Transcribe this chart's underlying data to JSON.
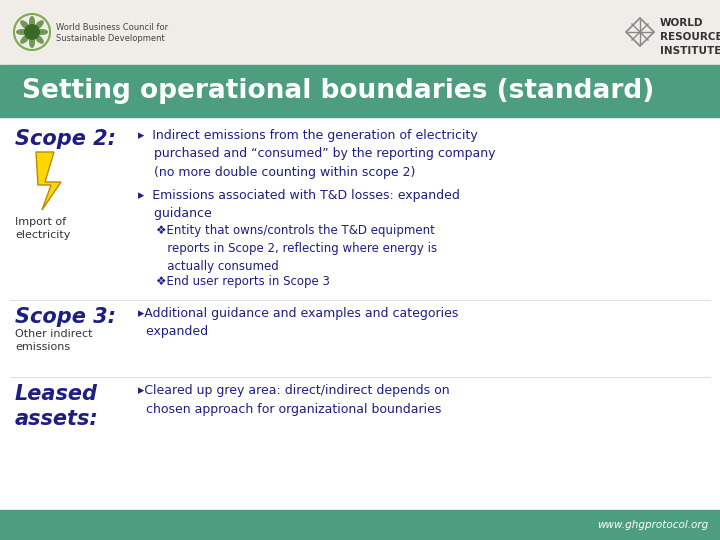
{
  "title": "Setting operational boundaries (standard)",
  "title_bg_color": "#4d9e7e",
  "title_text_color": "#ffffff",
  "bg_color": "#ffffff",
  "header_bg_color": "#f0ede8",
  "footer_bg_color": "#4d9e7e",
  "footer_text": "www.ghgprotocol.org",
  "dark_blue": "#1e1e82",
  "scope2_label": "Scope 2:",
  "scope2_sublabel": "Import of\nelectricity",
  "scope2_bullets": [
    "▸  Indirect emissions from the generation of electricity\n    purchased and “consumed” by the reporting company\n    (no more double counting within scope 2)",
    "▸  Emissions associated with T&D losses: expanded\n    guidance"
  ],
  "scope2_sub_bullets": [
    "❖Entity that owns/controls the T&D equipment\n   reports in Scope 2, reflecting where energy is\n   actually consumed",
    "❖End user reports in Scope 3"
  ],
  "scope3_label": "Scope 3:",
  "scope3_sublabel": "Other indirect\nemissions",
  "scope3_bullets": [
    "▸Additional guidance and examples and categories\n  expanded"
  ],
  "leased_label": "Leased\nassets:",
  "leased_bullets": [
    "▸Cleared up grey area: direct/indirect depends on\n  chosen approach for organizational boundaries"
  ],
  "wbcsd_line1": "World Business Council for",
  "wbcsd_line2": "Sustainable Development",
  "wri_text": "WORLD\nRESOURCES\nINSTITUTE"
}
